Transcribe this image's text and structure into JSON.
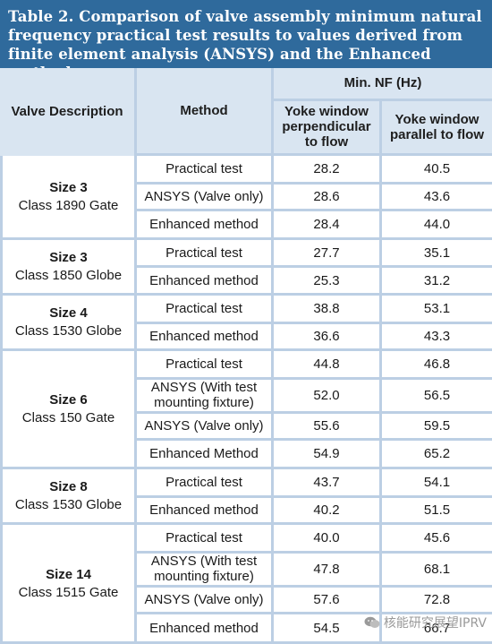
{
  "caption": "Table 2. Comparison of valve assembly minimum natural frequency practical test results to values derived from finite element analysis (ANSYS) and the Enhanced method",
  "headers": {
    "valve_description": "Valve Description",
    "method": "Method",
    "min_nf": "Min. NF (Hz)",
    "perpendicular": "Yoke window perpendicular to flow",
    "parallel": "Yoke window parallel to flow"
  },
  "groups": [
    {
      "size": "Size 3",
      "class": "Class 1890 Gate",
      "rows": [
        {
          "method": "Practical test",
          "perp": "28.2",
          "para": "40.5"
        },
        {
          "method": "ANSYS (Valve only)",
          "perp": "28.6",
          "para": "43.6"
        },
        {
          "method": "Enhanced method",
          "perp": "28.4",
          "para": "44.0"
        }
      ]
    },
    {
      "size": "Size 3",
      "class": "Class 1850 Globe",
      "rows": [
        {
          "method": "Practical test",
          "perp": "27.7",
          "para": "35.1"
        },
        {
          "method": "Enhanced method",
          "perp": "25.3",
          "para": "31.2"
        }
      ]
    },
    {
      "size": "Size 4",
      "class": "Class 1530 Globe",
      "rows": [
        {
          "method": "Practical test",
          "perp": "38.8",
          "para": "53.1"
        },
        {
          "method": "Enhanced method",
          "perp": "36.6",
          "para": "43.3"
        }
      ]
    },
    {
      "size": "Size 6",
      "class": "Class 150 Gate",
      "rows": [
        {
          "method": "Practical test",
          "perp": "44.8",
          "para": "46.8"
        },
        {
          "method": "ANSYS (With test mounting fixture)",
          "perp": "52.0",
          "para": "56.5"
        },
        {
          "method": "ANSYS (Valve only)",
          "perp": "55.6",
          "para": "59.5"
        },
        {
          "method": "Enhanced Method",
          "perp": "54.9",
          "para": "65.2"
        }
      ]
    },
    {
      "size": "Size 8",
      "class": "Class 1530 Globe",
      "rows": [
        {
          "method": "Practical test",
          "perp": "43.7",
          "para": "54.1"
        },
        {
          "method": "Enhanced method",
          "perp": "40.2",
          "para": "51.5"
        }
      ]
    },
    {
      "size": "Size 14",
      "class": "Class 1515 Gate",
      "rows": [
        {
          "method": "Practical test",
          "perp": "40.0",
          "para": "45.6"
        },
        {
          "method": "ANSYS (With test mounting fixture)",
          "perp": "47.8",
          "para": "68.1"
        },
        {
          "method": "ANSYS (Valve only)",
          "perp": "57.6",
          "para": "72.8"
        },
        {
          "method": "Enhanced method",
          "perp": "54.5",
          "para": "66.7"
        }
      ]
    }
  ],
  "watermark": "核能研究展望IPRV",
  "colors": {
    "caption_bg": "#2f6a9c",
    "header_bg": "#d9e5f1",
    "border": "#bccfe4"
  }
}
